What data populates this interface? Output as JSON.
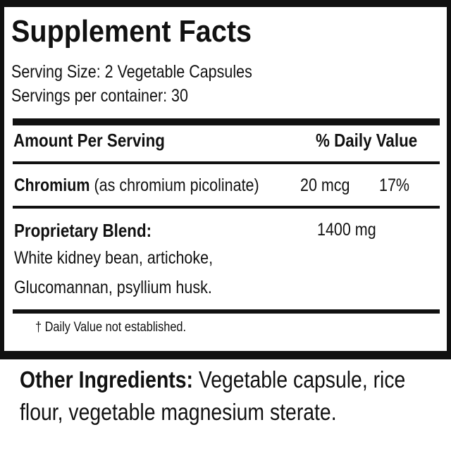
{
  "title": "Supplement Facts",
  "serving_size": "Serving Size: 2 Vegetable Capsules",
  "servings_per_container": "Servings per container: 30",
  "header": {
    "amount": "Amount Per Serving",
    "dv": "% Daily Value"
  },
  "rows": [
    {
      "name": "Chromium",
      "detail": "(as chromium picolinate)",
      "amount": "20 mcg",
      "dv": "17%"
    },
    {
      "name": "Proprietary Blend:",
      "detail_lines": [
        "White kidney bean, artichoke,",
        "Glucomannan, psyllium husk."
      ],
      "amount": "1400 mg"
    }
  ],
  "footnote": "† Daily Value not established.",
  "other": {
    "label": "Other Ingredients:",
    "text1": " Vegetable capsule, rice",
    "text2": "flour, vegetable magnesium sterate."
  }
}
